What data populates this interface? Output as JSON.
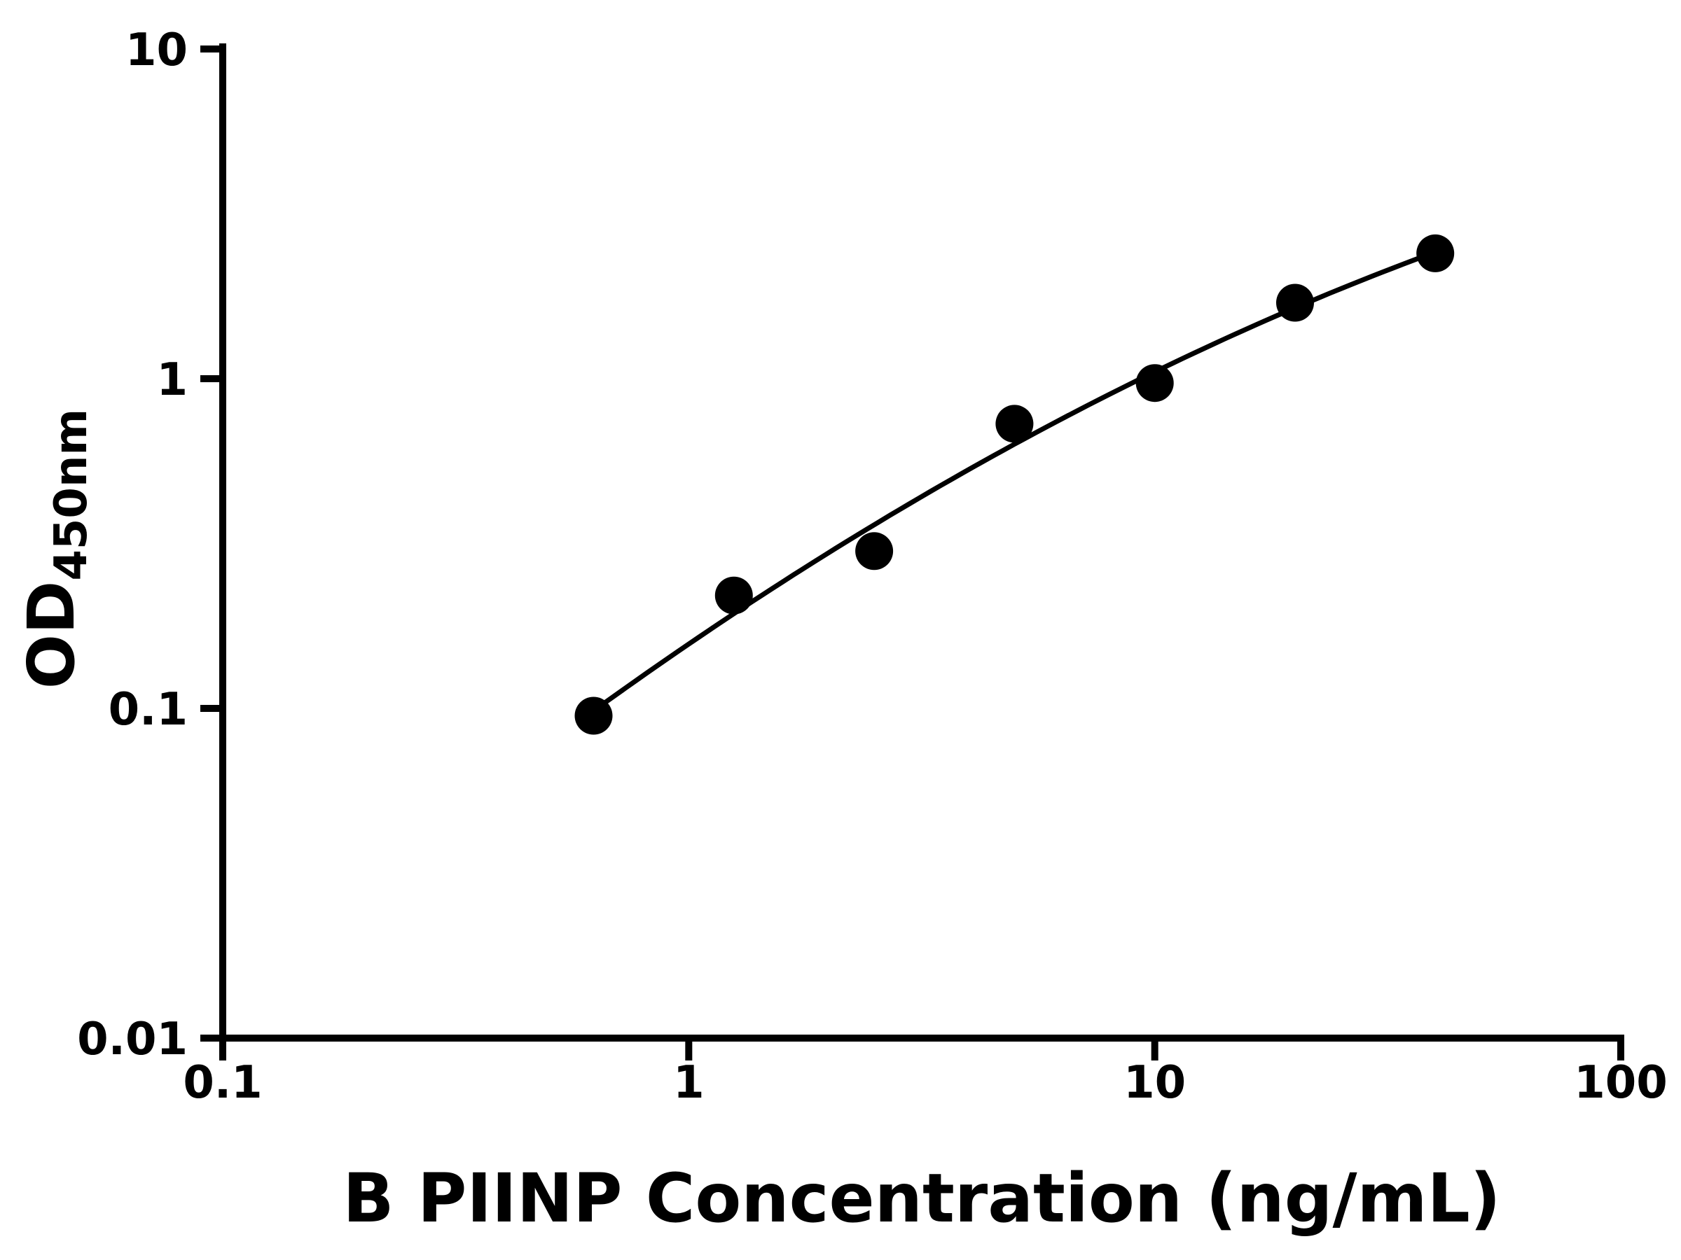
{
  "chart_data": {
    "type": "scatter",
    "title": "",
    "xlabel": "B PIINP Concentration (ng/mL)",
    "ylabel": "OD450nm",
    "ylabel_main": "OD",
    "ylabel_sub": "450nm",
    "x_scale": "log10",
    "y_scale": "log10",
    "xlim": [
      0.1,
      100
    ],
    "ylim": [
      0.01,
      10
    ],
    "x_ticks": [
      0.1,
      1,
      10,
      100
    ],
    "x_tick_labels": [
      "0.1",
      "1",
      "10",
      "100"
    ],
    "y_ticks": [
      10,
      1,
      0.1,
      0.01
    ],
    "y_tick_labels": [
      "10",
      "1",
      "0.1",
      "0.01"
    ],
    "x": [
      0.625,
      1.25,
      2.5,
      5,
      10,
      20,
      40
    ],
    "y": [
      0.095,
      0.22,
      0.3,
      0.73,
      0.97,
      1.7,
      2.4
    ],
    "has_fit_curve": true,
    "fit_curve_style": "smooth monotone curve through points (quadratic fit in log-log space)",
    "marker_shape": "filled-circle",
    "marker_color": "#000000",
    "curve_color": "#000000",
    "axis_color": "#000000",
    "background_color": "#ffffff",
    "grid": false,
    "legend": false
  }
}
